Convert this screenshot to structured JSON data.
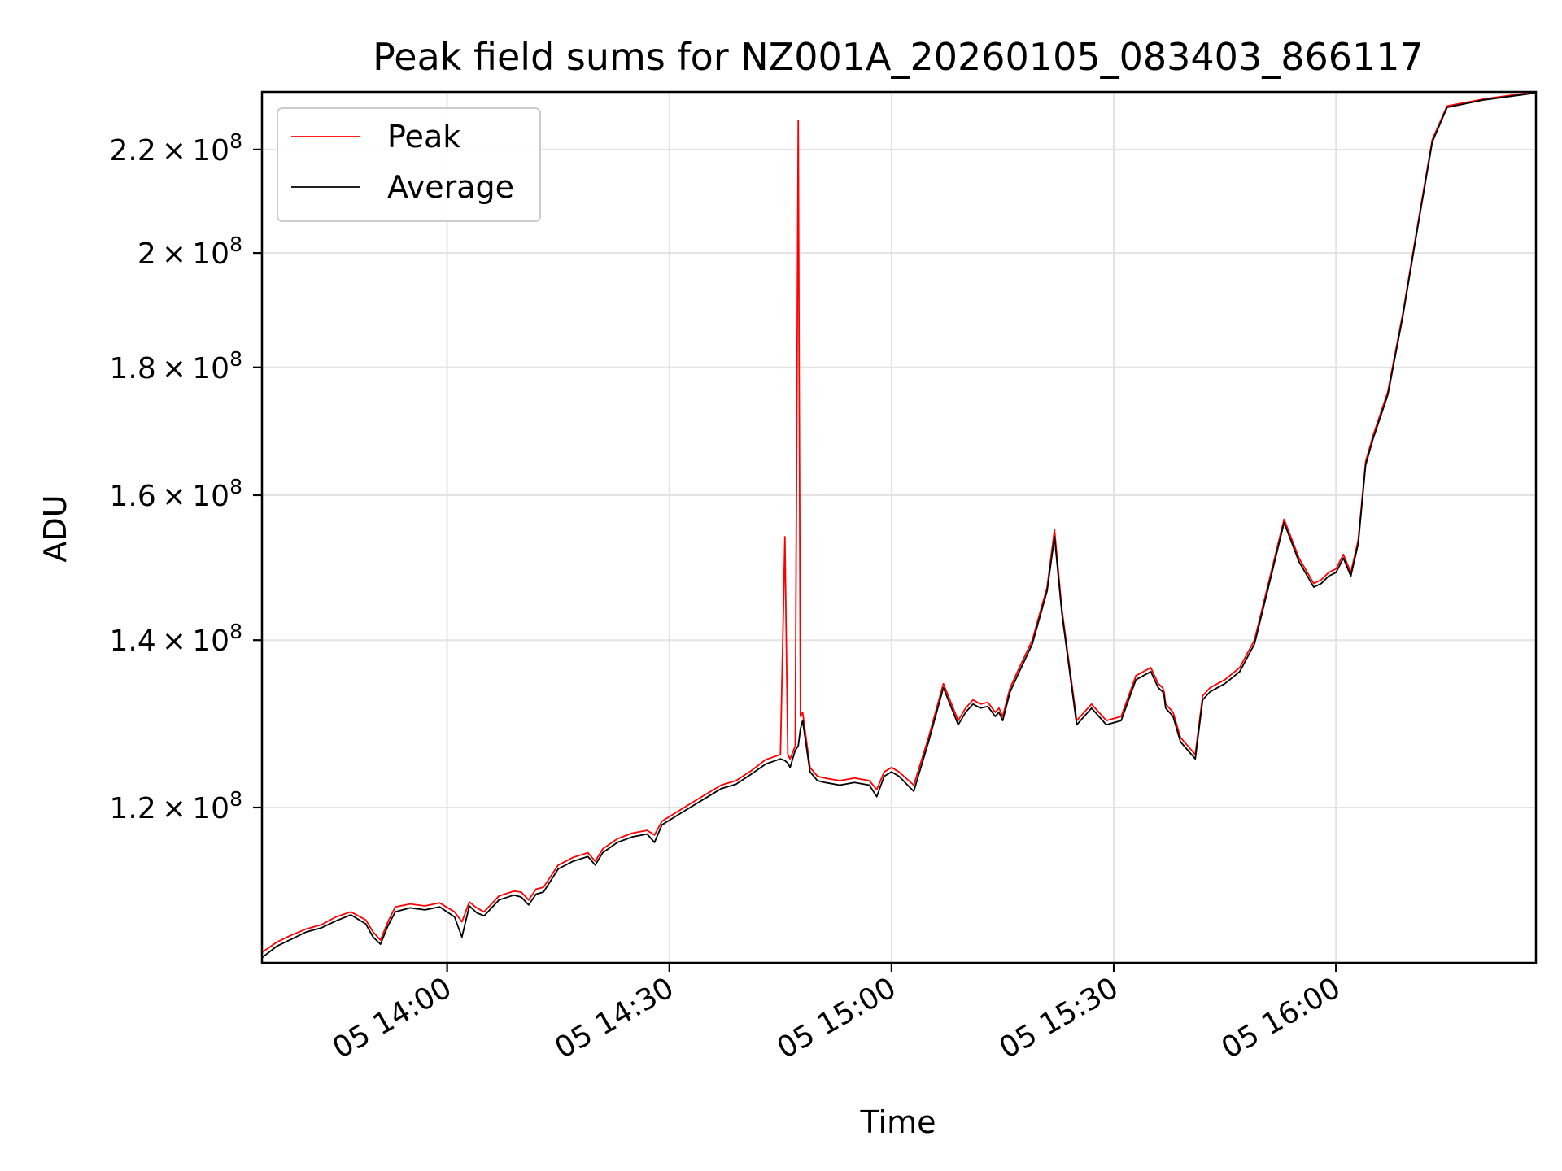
{
  "chart_data": {
    "type": "line",
    "title": "Peak field sums for NZ001A_20260105_083403_866117",
    "xlabel": "Time",
    "ylabel": "ADU",
    "y_scale": "log",
    "x_unit": "minutes since 05 13:35",
    "xlim": [
      0,
      172
    ],
    "ylim": [
      104000000,
      232000000
    ],
    "x_ticks": [
      {
        "value": 25,
        "label": "05 14:00"
      },
      {
        "value": 55,
        "label": "05 14:30"
      },
      {
        "value": 85,
        "label": "05 15:00"
      },
      {
        "value": 115,
        "label": "05 15:30"
      },
      {
        "value": 145,
        "label": "05 16:00"
      }
    ],
    "y_ticks": [
      {
        "value": 120000000,
        "mantissa": "1.2",
        "exponent": "8"
      },
      {
        "value": 140000000,
        "mantissa": "1.4",
        "exponent": "8"
      },
      {
        "value": 160000000,
        "mantissa": "1.6",
        "exponent": "8"
      },
      {
        "value": 180000000,
        "mantissa": "1.8",
        "exponent": "8"
      },
      {
        "value": 200000000,
        "mantissa": "2",
        "exponent": "8"
      },
      {
        "value": 220000000,
        "mantissa": "2.2",
        "exponent": "8"
      }
    ],
    "times_symbol": "×",
    "exponent_base": "10",
    "legend": {
      "position": "upper-left",
      "entries": [
        "Peak",
        "Average"
      ]
    },
    "series": [
      {
        "name": "Peak",
        "color": "#ff0000",
        "x": [
          0,
          2,
          4,
          6,
          8,
          10,
          12,
          14,
          15,
          16,
          17,
          18,
          20,
          22,
          24,
          26,
          27,
          28,
          29,
          30,
          32,
          34,
          35,
          36,
          37,
          38,
          40,
          42,
          44,
          45,
          46,
          48,
          50,
          52,
          53,
          54,
          56,
          58,
          60,
          62,
          64,
          66,
          68,
          70,
          70.6,
          71,
          71.3,
          72,
          72.4,
          72.7,
          73,
          74,
          75,
          76,
          78,
          80,
          82,
          83,
          84,
          85,
          86,
          88,
          90,
          92,
          94,
          95,
          96,
          97,
          98,
          99,
          99.5,
          100,
          101,
          102,
          104,
          106,
          107,
          108,
          110,
          112,
          114,
          116,
          118,
          120,
          121,
          121.6,
          121.8,
          122,
          123,
          124,
          125,
          126,
          127,
          128,
          130,
          132,
          134,
          136,
          138,
          140,
          142,
          143,
          144,
          145,
          146,
          147,
          148,
          149,
          150,
          152,
          154,
          156,
          158,
          160,
          165,
          172
        ],
        "values": [
          105000000,
          106000000,
          106700000,
          107300000,
          107700000,
          108500000,
          109000000,
          108200000,
          107000000,
          106200000,
          108000000,
          109500000,
          109800000,
          109600000,
          109900000,
          109000000,
          108000000,
          110000000,
          109400000,
          109000000,
          110600000,
          111100000,
          111000000,
          110200000,
          111300000,
          111500000,
          113800000,
          114600000,
          115100000,
          114200000,
          115500000,
          116600000,
          117200000,
          117500000,
          117000000,
          118500000,
          119500000,
          120500000,
          121500000,
          122500000,
          123000000,
          124100000,
          125400000,
          126000000,
          154000000,
          126000000,
          125500000,
          127000000,
          226000000,
          130500000,
          131000000,
          124500000,
          123500000,
          123300000,
          123000000,
          123300000,
          123000000,
          122000000,
          124000000,
          124500000,
          124000000,
          122500000,
          128000000,
          134500000,
          130000000,
          131500000,
          132500000,
          132000000,
          132200000,
          131000000,
          131500000,
          130500000,
          134000000,
          136000000,
          140000000,
          147000000,
          155000000,
          144000000,
          130000000,
          132000000,
          130000000,
          130500000,
          135500000,
          136500000,
          134500000,
          134000000,
          133500000,
          132000000,
          131000000,
          128000000,
          127000000,
          126000000,
          133000000,
          134000000,
          135000000,
          136500000,
          140000000,
          148000000,
          156500000,
          151000000,
          147500000,
          148000000,
          149000000,
          149500000,
          151500000,
          149000000,
          153500000,
          165000000,
          169000000,
          176000000,
          189000000,
          205000000,
          222000000,
          229000000,
          230500000,
          232000000
        ]
      },
      {
        "name": "Average",
        "color": "#000000",
        "x": [
          0,
          2,
          4,
          6,
          8,
          10,
          12,
          14,
          15,
          16,
          17,
          18,
          20,
          22,
          24,
          26,
          27,
          28,
          29,
          30,
          32,
          34,
          35,
          36,
          37,
          38,
          40,
          42,
          44,
          45,
          46,
          48,
          50,
          52,
          53,
          54,
          56,
          58,
          60,
          62,
          64,
          66,
          68,
          70,
          70.6,
          71,
          71.3,
          72,
          72.4,
          72.7,
          73,
          74,
          75,
          76,
          78,
          80,
          82,
          83,
          84,
          85,
          86,
          88,
          90,
          92,
          94,
          95,
          96,
          97,
          98,
          99,
          99.5,
          100,
          101,
          102,
          104,
          106,
          107,
          108,
          110,
          112,
          114,
          116,
          118,
          120,
          121,
          121.6,
          121.8,
          122,
          123,
          124,
          125,
          126,
          127,
          128,
          130,
          132,
          134,
          136,
          138,
          140,
          142,
          143,
          144,
          145,
          146,
          147,
          148,
          149,
          150,
          152,
          154,
          156,
          158,
          160,
          165,
          172
        ],
        "values": [
          104500000,
          105600000,
          106300000,
          107000000,
          107400000,
          108100000,
          108700000,
          107800000,
          106500000,
          105800000,
          107600000,
          109000000,
          109400000,
          109200000,
          109500000,
          108500000,
          106500000,
          109600000,
          108900000,
          108600000,
          110200000,
          110700000,
          110500000,
          109700000,
          110800000,
          111000000,
          113400000,
          114200000,
          114700000,
          113800000,
          115100000,
          116200000,
          116800000,
          117100000,
          116200000,
          118100000,
          119100000,
          120100000,
          121100000,
          122100000,
          122600000,
          123700000,
          124900000,
          125500000,
          125300000,
          125000000,
          124500000,
          126500000,
          127000000,
          129000000,
          130000000,
          124000000,
          123000000,
          122800000,
          122500000,
          122800000,
          122500000,
          121200000,
          123500000,
          124000000,
          123500000,
          121800000,
          127500000,
          134000000,
          129500000,
          131000000,
          132000000,
          131500000,
          131700000,
          130500000,
          131000000,
          130000000,
          133500000,
          135500000,
          139500000,
          146500000,
          154000000,
          143500000,
          129500000,
          131500000,
          129500000,
          130000000,
          135000000,
          136000000,
          134000000,
          133500000,
          133000000,
          131500000,
          130500000,
          127500000,
          126500000,
          125500000,
          132500000,
          133500000,
          134500000,
          136000000,
          139500000,
          147500000,
          156000000,
          150500000,
          147000000,
          147500000,
          148500000,
          149000000,
          151000000,
          148500000,
          153000000,
          164500000,
          168500000,
          175500000,
          188500000,
          204500000,
          221500000,
          228700000,
          230300000,
          231800000
        ]
      }
    ]
  }
}
